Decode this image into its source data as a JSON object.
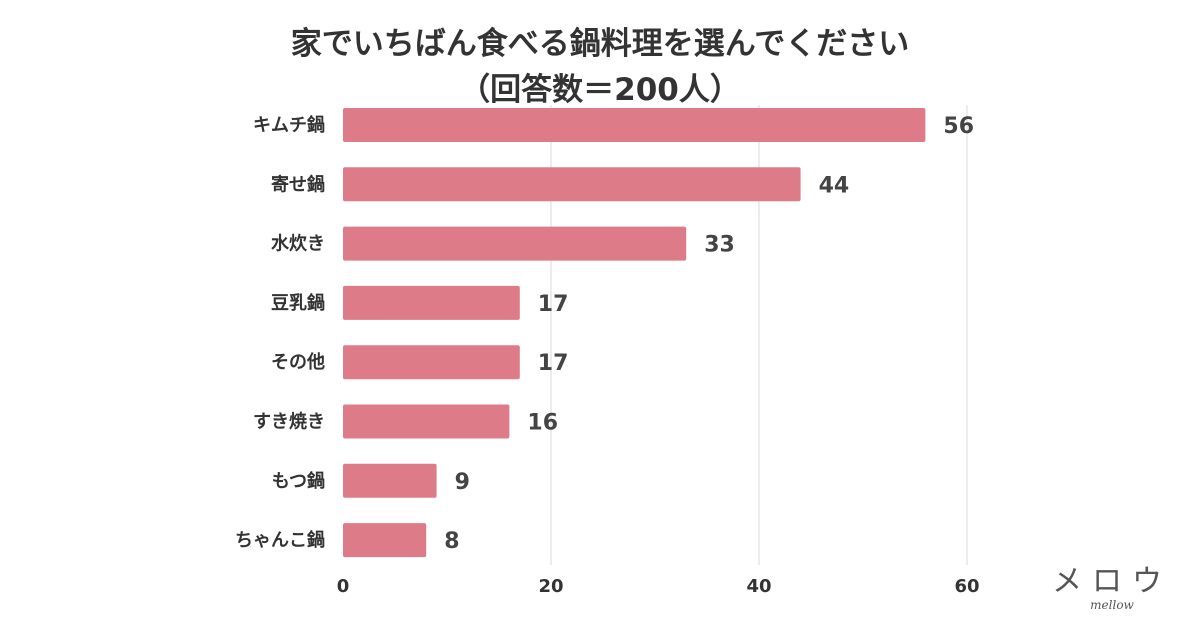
{
  "chart_data": {
    "type": "bar",
    "orientation": "horizontal",
    "title_lines": [
      "家でいちばん食べる鍋料理を選んでください",
      "（回答数＝200人）"
    ],
    "categories": [
      "キムチ鍋",
      "寄せ鍋",
      "水炊き",
      "豆乳鍋",
      "その他",
      "すき焼き",
      "もつ鍋",
      "ちゃんこ鍋"
    ],
    "values": [
      56,
      44,
      33,
      17,
      17,
      16,
      9,
      8
    ],
    "value_labels": [
      "56",
      "44",
      "33",
      "17",
      "17",
      "16",
      "9",
      "8"
    ],
    "xlim": [
      0,
      60
    ],
    "x_ticks": [
      0,
      20,
      40,
      60
    ],
    "x_tick_labels": [
      "0",
      "20",
      "40",
      "60"
    ],
    "grid": "vertical",
    "bar_color": "#de7b88"
  },
  "logo": {
    "main": "メロウ",
    "sub": "mellow"
  }
}
